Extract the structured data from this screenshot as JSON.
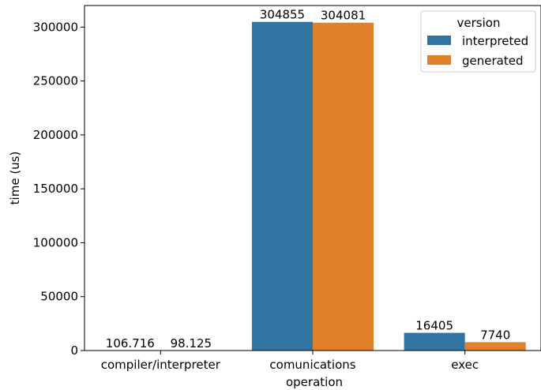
{
  "chart_data": {
    "type": "bar",
    "title": "",
    "xlabel": "operation",
    "ylabel": "time (us)",
    "categories": [
      "compiler/interpreter",
      "comunications",
      "exec"
    ],
    "series": [
      {
        "name": "interpreted",
        "color": "#3274a1",
        "values": [
          106.716,
          304855,
          16405
        ],
        "labels": [
          "106.716",
          "304855",
          "16405"
        ]
      },
      {
        "name": "generated",
        "color": "#e1812c",
        "values": [
          98.125,
          304081,
          7740
        ],
        "labels": [
          "98.125",
          "304081",
          "7740"
        ]
      }
    ],
    "ylim": [
      0,
      320000
    ],
    "yticks": [
      "0",
      "50000",
      "100000",
      "150000",
      "200000",
      "250000",
      "300000"
    ],
    "legend": {
      "title": "version",
      "placement": "top-right"
    },
    "grid": false
  }
}
